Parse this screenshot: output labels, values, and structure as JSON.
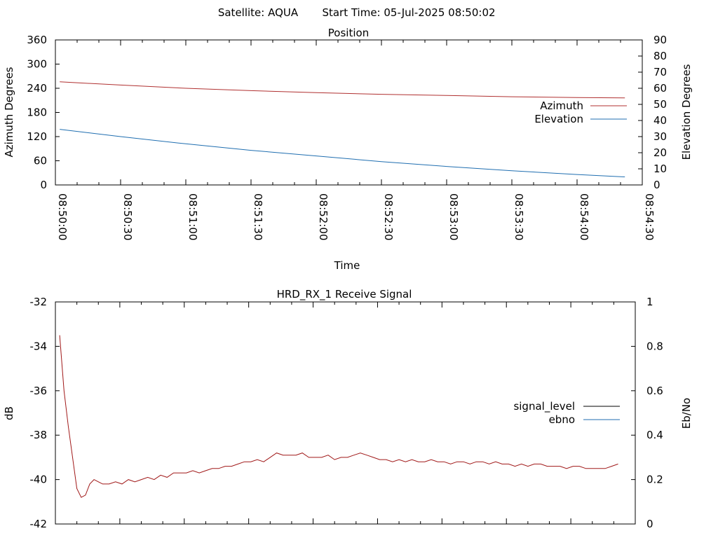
{
  "header": {
    "satellite": "Satellite: AQUA",
    "start_time": "Start Time: 05-Jul-2025 08:50:02"
  },
  "chart_data": [
    {
      "type": "line",
      "title": "Position",
      "xlabel": "Time",
      "ylabel": "Azimuth Degrees",
      "y2label": "Elevation Degrees",
      "x_ticks": [
        "08:50:00",
        "08:50:30",
        "08:51:00",
        "08:51:30",
        "08:52:00",
        "08:52:30",
        "08:53:00",
        "08:53:30",
        "08:54:00",
        "08:54:30"
      ],
      "xlim_seconds": [
        0,
        270
      ],
      "ylim": [
        0,
        360
      ],
      "y_ticks": [
        "0",
        "60",
        "120",
        "180",
        "240",
        "300",
        "360"
      ],
      "y2lim": [
        0,
        90
      ],
      "y2_ticks": [
        "0",
        "10",
        "20",
        "30",
        "40",
        "50",
        "60",
        "70",
        "80",
        "90"
      ],
      "legend_position": "right",
      "series": [
        {
          "name": "Azimuth",
          "axis": "y",
          "color": "#b03030",
          "x_seconds": [
            2,
            30,
            60,
            90,
            120,
            150,
            180,
            210,
            240,
            262
          ],
          "values": [
            256,
            248,
            240,
            234,
            229,
            225,
            222,
            219,
            217,
            216
          ]
        },
        {
          "name": "Elevation",
          "axis": "y2",
          "color": "#1f6eb0",
          "x_seconds": [
            2,
            30,
            60,
            90,
            120,
            150,
            180,
            210,
            240,
            262
          ],
          "values": [
            34.5,
            30,
            25.5,
            21.5,
            18,
            14.5,
            11.5,
            8.8,
            6.5,
            5
          ]
        }
      ]
    },
    {
      "type": "line",
      "title": "HRD_RX_1 Receive Signal",
      "ylabel": "dB",
      "y2label": "Eb/No",
      "xlim_seconds": [
        0,
        270
      ],
      "ylim": [
        -42,
        -32
      ],
      "y_ticks": [
        "-42",
        "-40",
        "-38",
        "-36",
        "-34",
        "-32"
      ],
      "y2lim": [
        0,
        1
      ],
      "y2_ticks": [
        "0",
        "0.2",
        "0.4",
        "0.6",
        "0.8",
        "1"
      ],
      "legend_position": "right",
      "series": [
        {
          "name": "signal_level",
          "axis": "y",
          "color": "#a01818",
          "x_seconds": [
            2,
            4,
            6,
            8,
            10,
            12,
            14,
            16,
            18,
            20,
            22,
            25,
            28,
            31,
            34,
            37,
            40,
            43,
            46,
            49,
            52,
            55,
            58,
            61,
            64,
            67,
            70,
            73,
            76,
            79,
            82,
            85,
            88,
            91,
            94,
            97,
            100,
            103,
            106,
            109,
            112,
            115,
            118,
            121,
            124,
            127,
            130,
            133,
            136,
            139,
            142,
            145,
            148,
            151,
            154,
            157,
            160,
            163,
            166,
            169,
            172,
            175,
            178,
            181,
            184,
            187,
            190,
            193,
            196,
            199,
            202,
            205,
            208,
            211,
            214,
            217,
            220,
            223,
            226,
            229,
            232,
            235,
            238,
            241,
            244,
            247,
            250,
            253,
            256,
            259,
            262
          ],
          "values": [
            -33.5,
            -36,
            -37.6,
            -39,
            -40.4,
            -40.8,
            -40.7,
            -40.2,
            -40.0,
            -40.1,
            -40.2,
            -40.2,
            -40.1,
            -40.2,
            -40.0,
            -40.1,
            -40.0,
            -39.9,
            -40.0,
            -39.8,
            -39.9,
            -39.7,
            -39.7,
            -39.7,
            -39.6,
            -39.7,
            -39.6,
            -39.5,
            -39.5,
            -39.4,
            -39.4,
            -39.3,
            -39.2,
            -39.2,
            -39.1,
            -39.2,
            -39.0,
            -38.8,
            -38.9,
            -38.9,
            -38.9,
            -38.8,
            -39.0,
            -39.0,
            -39.0,
            -38.9,
            -39.1,
            -39.0,
            -39.0,
            -38.9,
            -38.8,
            -38.9,
            -39.0,
            -39.1,
            -39.1,
            -39.2,
            -39.1,
            -39.2,
            -39.1,
            -39.2,
            -39.2,
            -39.1,
            -39.2,
            -39.2,
            -39.3,
            -39.2,
            -39.2,
            -39.3,
            -39.2,
            -39.2,
            -39.3,
            -39.2,
            -39.3,
            -39.3,
            -39.4,
            -39.3,
            -39.4,
            -39.3,
            -39.3,
            -39.4,
            -39.4,
            -39.4,
            -39.5,
            -39.4,
            -39.4,
            -39.5,
            -39.5,
            -39.5,
            -39.5,
            -39.4,
            -39.3
          ]
        },
        {
          "name": "ebno",
          "axis": "y2",
          "color": "#1f6eb0",
          "x_seconds": [],
          "values": []
        }
      ]
    }
  ]
}
